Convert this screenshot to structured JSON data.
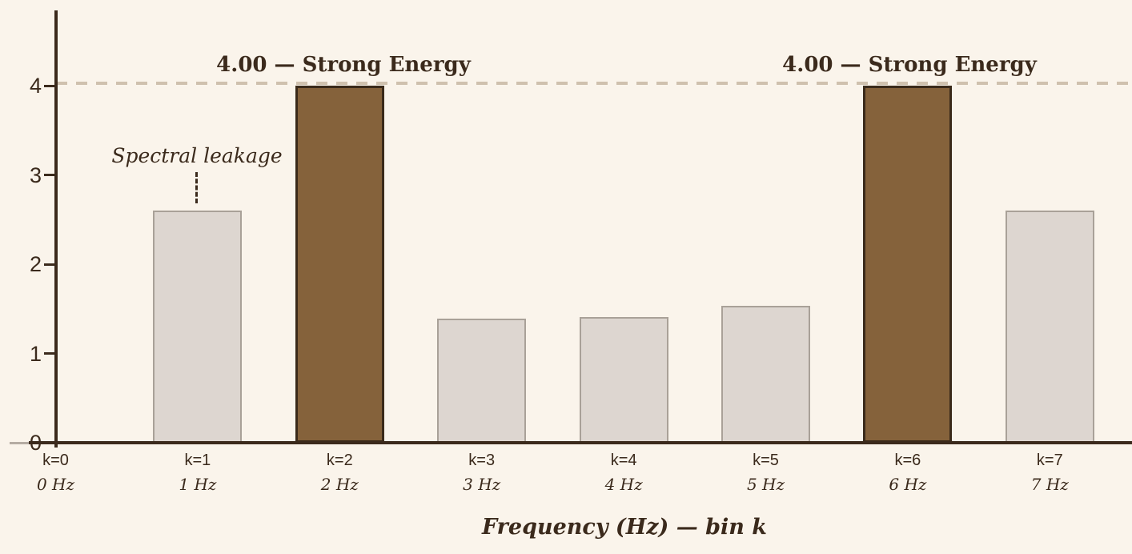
{
  "colors": {
    "background": "#FAF4EB",
    "ink": "#3B2A1C",
    "bar_strong_fill": "#85623B",
    "bar_strong_border": "#3A2A1A",
    "bar_weak_fill": "#DDD6D0",
    "bar_weak_border": "#A9A198",
    "reference_dash": "#CFC1AE"
  },
  "annotations": {
    "strong_energy_left": "4.00 — Strong Energy",
    "strong_energy_right": "4.00 — Strong Energy",
    "spectral_leakage": "Spectral leakage"
  },
  "chart_data": {
    "type": "bar",
    "title": "",
    "xlabel": "Frequency (Hz) — bin k",
    "ylabel": "",
    "ylim": [
      0,
      4.4
    ],
    "yticks": [
      0,
      1,
      2,
      3,
      4
    ],
    "grid": false,
    "legend": false,
    "categories": [
      "k=0",
      "k=1",
      "k=2",
      "k=3",
      "k=4",
      "k=5",
      "k=6",
      "k=7"
    ],
    "category_sublabels": [
      "0 Hz",
      "1 Hz",
      "2 Hz",
      "3 Hz",
      "4 Hz",
      "5 Hz",
      "6 Hz",
      "7 Hz"
    ],
    "values": [
      0,
      2.6,
      4.0,
      1.39,
      1.41,
      1.53,
      4.0,
      2.6
    ],
    "strong_bins": [
      2,
      6
    ],
    "reference_line": {
      "value": 4.0,
      "style": "dashed"
    },
    "annotations": [
      {
        "text": "4.00 — Strong Energy",
        "bin": 2,
        "value": 4.0
      },
      {
        "text": "4.00 — Strong Energy",
        "bin": 6,
        "value": 4.0
      },
      {
        "text": "Spectral leakage",
        "bin": 1,
        "leader": "dotted"
      }
    ]
  }
}
